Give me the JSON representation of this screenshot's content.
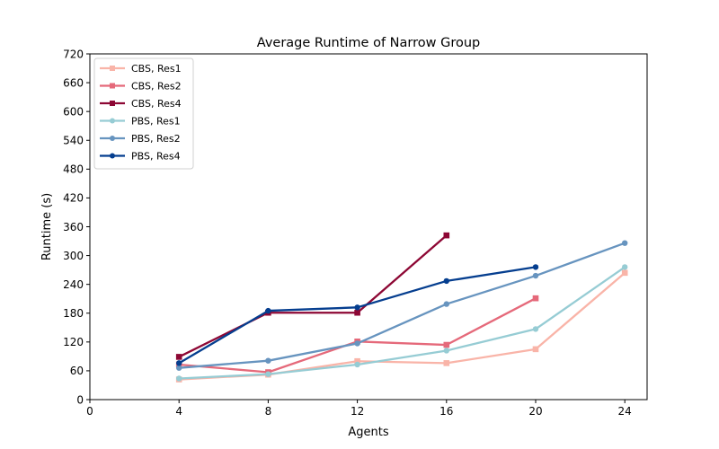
{
  "chart_data": {
    "type": "line",
    "title": "Average Runtime of Narrow Group",
    "xlabel": "Agents",
    "ylabel": "Runtime (s)",
    "xlim": [
      0,
      25
    ],
    "ylim": [
      0,
      720
    ],
    "xticks": [
      0,
      4,
      8,
      12,
      16,
      20,
      24
    ],
    "yticks": [
      0,
      60,
      120,
      180,
      240,
      300,
      360,
      420,
      480,
      540,
      600,
      660,
      720
    ],
    "grid": false,
    "legend": "top-left",
    "series": [
      {
        "name": "CBS, Res1",
        "color": "#f9b4a8",
        "marker": "square",
        "x": [
          4,
          8,
          12,
          16,
          20,
          24
        ],
        "y": [
          42,
          52,
          80,
          76,
          105,
          264
        ]
      },
      {
        "name": "CBS, Res2",
        "color": "#e5697a",
        "marker": "square",
        "x": [
          4,
          8,
          12,
          16,
          20
        ],
        "y": [
          73,
          57,
          121,
          114,
          211
        ]
      },
      {
        "name": "CBS, Res4",
        "color": "#8d0734",
        "marker": "square",
        "x": [
          4,
          8,
          12,
          16
        ],
        "y": [
          89,
          181,
          181,
          342
        ]
      },
      {
        "name": "PBS, Res1",
        "color": "#96ccd4",
        "marker": "circle",
        "x": [
          4,
          8,
          12,
          16,
          20,
          24
        ],
        "y": [
          44,
          53,
          73,
          102,
          147,
          276
        ]
      },
      {
        "name": "PBS, Res2",
        "color": "#6794bf",
        "marker": "circle",
        "x": [
          4,
          8,
          12,
          16,
          20,
          24
        ],
        "y": [
          66,
          81,
          117,
          199,
          258,
          326
        ]
      },
      {
        "name": "PBS, Res4",
        "color": "#053e8f",
        "marker": "circle",
        "x": [
          4,
          8,
          12,
          16,
          20
        ],
        "y": [
          76,
          185,
          192,
          247,
          276
        ]
      }
    ]
  }
}
